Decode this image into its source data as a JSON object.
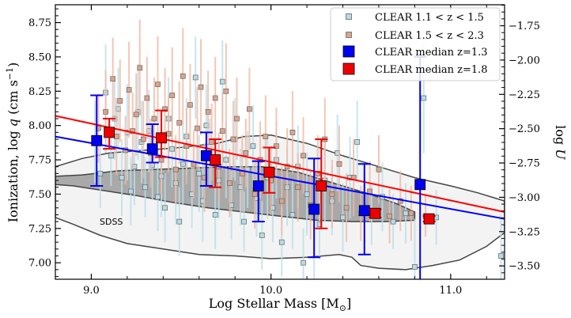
{
  "chart_data": {
    "type": "scatter",
    "title": "",
    "xlabel": "Log Stellar Mass [M",
    "xlabel_sub": "⊙",
    "xlabel_close": "]",
    "ylabel_prefix": "Ionization, log ",
    "ylabel_q": "q",
    "ylabel_units": " (cm s",
    "ylabel_exp": "−1",
    "ylabel_close": ")",
    "y2label_prefix": "log ",
    "y2label_var": "U",
    "xlim": [
      8.8,
      11.3
    ],
    "ylim": [
      6.88,
      8.88
    ],
    "y2_offset": 10.47712,
    "xticks": [
      {
        "v": 9.0,
        "label": "9.0"
      },
      {
        "v": 10.0,
        "label": "10.0"
      },
      {
        "v": 11.0,
        "label": "11.0"
      }
    ],
    "yticks": [
      {
        "v": 7.0,
        "label": "7.00"
      },
      {
        "v": 7.25,
        "label": "7.25"
      },
      {
        "v": 7.5,
        "label": "7.50"
      },
      {
        "v": 7.75,
        "label": "7.75"
      },
      {
        "v": 8.0,
        "label": "8.00"
      },
      {
        "v": 8.25,
        "label": "8.25"
      },
      {
        "v": 8.5,
        "label": "8.50"
      },
      {
        "v": 8.75,
        "label": "8.75"
      }
    ],
    "y2ticks": [
      {
        "v": -3.5,
        "label": "−3.50"
      },
      {
        "v": -3.25,
        "label": "−3.25"
      },
      {
        "v": -3.0,
        "label": "−3.00"
      },
      {
        "v": -2.75,
        "label": "−2.75"
      },
      {
        "v": -2.5,
        "label": "−2.50"
      },
      {
        "v": -2.25,
        "label": "−2.25"
      },
      {
        "v": -2.0,
        "label": "−2.00"
      },
      {
        "v": -1.75,
        "label": "−1.75"
      }
    ],
    "annotation": "SDSS",
    "legend": [
      {
        "label": "CLEAR 1.1 < z < 1.5",
        "kind": "small",
        "fill": "#b7dbe5",
        "edge": "#666666"
      },
      {
        "label": "CLEAR 1.5 < z < 2.3",
        "kind": "small",
        "fill": "#d8a58f",
        "edge": "#666666"
      },
      {
        "label": "CLEAR median z=1.3",
        "kind": "big",
        "fill": "#0000ee",
        "edge": "#000000"
      },
      {
        "label": "CLEAR median z=1.8",
        "kind": "big",
        "fill": "#ee0000",
        "edge": "#000000"
      }
    ],
    "colors": {
      "low_z_points": "#b7dbe5",
      "low_z_errors": "#b9dfea",
      "high_z_points": "#d8a58f",
      "high_z_errors": "#f0b8a3",
      "median_low": "#0000ee",
      "median_high": "#ee0000",
      "fit_low": "#0000ff",
      "fit_high": "#ff0000",
      "sdss_outer_fill": "#f3f3f3",
      "sdss_inner_fill": "#a9a9a9",
      "sdss_line": "#444444"
    },
    "fit_lines": [
      {
        "name": "fit z=1.3",
        "color": "#0000ff",
        "x": [
          8.8,
          11.3
        ],
        "y": [
          7.92,
          7.32
        ]
      },
      {
        "name": "fit z=1.8",
        "color": "#ff0000",
        "x": [
          8.8,
          11.3
        ],
        "y": [
          8.07,
          7.37
        ]
      }
    ],
    "sdss_contours": [
      {
        "name": "SDSS outer",
        "points": [
          [
            8.8,
            7.7
          ],
          [
            8.95,
            7.76
          ],
          [
            9.1,
            7.8
          ],
          [
            9.3,
            7.82
          ],
          [
            9.5,
            7.84
          ],
          [
            9.7,
            7.87
          ],
          [
            9.85,
            7.92
          ],
          [
            10.0,
            7.93
          ],
          [
            10.2,
            7.87
          ],
          [
            10.4,
            7.78
          ],
          [
            10.6,
            7.7
          ],
          [
            10.8,
            7.62
          ],
          [
            11.0,
            7.56
          ],
          [
            11.15,
            7.51
          ],
          [
            11.25,
            7.47
          ],
          [
            11.3,
            7.45
          ],
          [
            11.3,
            7.22
          ],
          [
            11.2,
            7.12
          ],
          [
            11.05,
            7.02
          ],
          [
            10.9,
            6.98
          ],
          [
            10.75,
            6.95
          ],
          [
            10.6,
            6.96
          ],
          [
            10.5,
            6.98
          ],
          [
            10.45,
            7.04
          ],
          [
            10.38,
            7.06
          ],
          [
            10.2,
            7.04
          ],
          [
            10.0,
            7.03
          ],
          [
            9.8,
            7.05
          ],
          [
            9.6,
            7.06
          ],
          [
            9.4,
            7.1
          ],
          [
            9.2,
            7.14
          ],
          [
            9.05,
            7.2
          ],
          [
            8.9,
            7.28
          ],
          [
            8.8,
            7.33
          ]
        ]
      },
      {
        "name": "SDSS inner",
        "points": [
          [
            8.8,
            7.63
          ],
          [
            8.95,
            7.64
          ],
          [
            9.15,
            7.67
          ],
          [
            9.35,
            7.68
          ],
          [
            9.55,
            7.69
          ],
          [
            9.75,
            7.7
          ],
          [
            9.95,
            7.7
          ],
          [
            10.15,
            7.66
          ],
          [
            10.35,
            7.58
          ],
          [
            10.55,
            7.5
          ],
          [
            10.7,
            7.43
          ],
          [
            10.8,
            7.37
          ],
          [
            10.8,
            7.31
          ],
          [
            10.65,
            7.3
          ],
          [
            10.45,
            7.3
          ],
          [
            10.25,
            7.31
          ],
          [
            10.05,
            7.34
          ],
          [
            9.85,
            7.37
          ],
          [
            9.65,
            7.4
          ],
          [
            9.45,
            7.44
          ],
          [
            9.25,
            7.49
          ],
          [
            9.05,
            7.53
          ],
          [
            8.9,
            7.56
          ],
          [
            8.8,
            7.57
          ]
        ]
      }
    ],
    "series": [
      {
        "name": "CLEAR median z=1.3",
        "color": "#0000ee",
        "x": [
          9.03,
          9.34,
          9.64,
          9.93,
          10.24,
          10.52,
          10.83
        ],
        "y": [
          7.89,
          7.83,
          7.78,
          7.56,
          7.39,
          7.38,
          7.57
        ],
        "yerr_low": [
          0.33,
          0.1,
          0.22,
          0.26,
          0.35,
          0.32,
          0.75
        ],
        "yerr_high": [
          0.33,
          0.18,
          0.17,
          0.18,
          0.37,
          0.34,
          0.93
        ]
      },
      {
        "name": "CLEAR median z=1.8",
        "color": "#ee0000",
        "x": [
          9.1,
          9.39,
          9.69,
          9.99,
          10.28,
          10.58,
          10.88
        ],
        "y": [
          7.95,
          7.91,
          7.75,
          7.66,
          7.56,
          7.36,
          7.32
        ],
        "yerr_low": [
          0.12,
          0.14,
          0.2,
          0.15,
          0.31,
          0.03,
          0.02
        ],
        "yerr_high": [
          0.1,
          0.2,
          0.15,
          0.18,
          0.34,
          0.03,
          0.02
        ]
      }
    ],
    "scatter_low_z": [
      [
        9.02,
        7.88,
        0.3
      ],
      [
        9.05,
        7.65,
        0.25
      ],
      [
        9.08,
        8.24,
        0.35
      ],
      [
        9.11,
        7.78,
        0.22
      ],
      [
        9.13,
        8.05,
        0.3
      ],
      [
        9.15,
        8.12,
        0.3
      ],
      [
        9.17,
        7.62,
        0.28
      ],
      [
        9.2,
        7.95,
        0.35
      ],
      [
        9.22,
        7.52,
        0.25
      ],
      [
        9.24,
        7.7,
        0.28
      ],
      [
        9.26,
        8.1,
        0.35
      ],
      [
        9.28,
        7.88,
        0.3
      ],
      [
        9.3,
        7.55,
        0.22
      ],
      [
        9.32,
        7.96,
        0.3
      ],
      [
        9.34,
        7.71,
        0.25
      ],
      [
        9.37,
        7.48,
        0.25
      ],
      [
        9.39,
        7.63,
        0.3
      ],
      [
        9.41,
        7.4,
        0.25
      ],
      [
        9.43,
        8.05,
        0.3
      ],
      [
        9.45,
        7.83,
        0.28
      ],
      [
        9.47,
        7.58,
        0.3
      ],
      [
        9.49,
        7.3,
        0.25
      ],
      [
        9.51,
        7.72,
        0.3
      ],
      [
        9.53,
        7.92,
        0.28
      ],
      [
        9.56,
        7.5,
        0.25
      ],
      [
        9.58,
        8.35,
        0.3
      ],
      [
        9.6,
        7.65,
        0.28
      ],
      [
        9.62,
        7.45,
        0.3
      ],
      [
        9.64,
        8.0,
        0.3
      ],
      [
        9.66,
        7.8,
        0.25
      ],
      [
        9.69,
        7.35,
        0.25
      ],
      [
        9.71,
        7.6,
        0.28
      ],
      [
        9.73,
        8.32,
        0.3
      ],
      [
        9.75,
        7.75,
        0.28
      ],
      [
        9.78,
        7.42,
        0.25
      ],
      [
        9.8,
        7.9,
        0.3
      ],
      [
        9.83,
        7.55,
        0.28
      ],
      [
        9.85,
        7.3,
        0.22
      ],
      [
        9.87,
        7.68,
        0.28
      ],
      [
        9.9,
        7.85,
        0.3
      ],
      [
        9.92,
        7.47,
        0.28
      ],
      [
        9.95,
        7.2,
        0.25
      ],
      [
        9.98,
        7.62,
        0.3
      ],
      [
        10.01,
        7.4,
        0.25
      ],
      [
        10.03,
        7.75,
        0.28
      ],
      [
        10.06,
        7.15,
        0.25
      ],
      [
        10.09,
        7.55,
        0.28
      ],
      [
        10.12,
        7.35,
        0.25
      ],
      [
        10.15,
        7.7,
        0.3
      ],
      [
        10.18,
        7.0,
        0.25
      ],
      [
        10.2,
        7.5,
        0.3
      ],
      [
        10.24,
        6.85,
        0.2
      ],
      [
        10.27,
        7.28,
        0.25
      ],
      [
        10.3,
        7.6,
        0.3
      ],
      [
        10.34,
        7.45,
        0.25
      ],
      [
        10.37,
        7.8,
        0.28
      ],
      [
        10.4,
        7.33,
        0.25
      ],
      [
        10.44,
        7.62,
        0.3
      ],
      [
        10.48,
        7.88,
        0.3
      ],
      [
        10.52,
        7.4,
        0.25
      ],
      [
        10.56,
        7.35,
        0.22
      ],
      [
        10.62,
        7.48,
        0.25
      ],
      [
        10.68,
        7.3,
        0.2
      ],
      [
        10.75,
        7.36,
        0.22
      ],
      [
        10.8,
        6.97,
        0.35
      ],
      [
        10.85,
        8.2,
        0.4
      ],
      [
        10.92,
        7.33,
        0.2
      ],
      [
        11.28,
        7.05,
        0.3
      ]
    ],
    "scatter_high_z": [
      [
        9.04,
        7.98,
        0.25
      ],
      [
        9.08,
        8.1,
        0.3
      ],
      [
        9.12,
        8.34,
        0.3
      ],
      [
        9.14,
        7.92,
        0.28
      ],
      [
        9.16,
        8.18,
        0.3
      ],
      [
        9.19,
        7.82,
        0.25
      ],
      [
        9.21,
        8.26,
        0.35
      ],
      [
        9.23,
        7.96,
        0.28
      ],
      [
        9.25,
        8.08,
        0.3
      ],
      [
        9.27,
        8.42,
        0.35
      ],
      [
        9.29,
        7.9,
        0.28
      ],
      [
        9.31,
        8.2,
        0.3
      ],
      [
        9.33,
        7.8,
        0.25
      ],
      [
        9.35,
        8.05,
        0.3
      ],
      [
        9.37,
        8.3,
        0.35
      ],
      [
        9.39,
        7.75,
        0.25
      ],
      [
        9.41,
        8.12,
        0.3
      ],
      [
        9.43,
        7.94,
        0.28
      ],
      [
        9.45,
        8.22,
        0.35
      ],
      [
        9.47,
        7.68,
        0.25
      ],
      [
        9.49,
        8.02,
        0.3
      ],
      [
        9.51,
        8.36,
        0.35
      ],
      [
        9.53,
        7.85,
        0.28
      ],
      [
        9.55,
        8.15,
        0.3
      ],
      [
        9.57,
        7.72,
        0.25
      ],
      [
        9.59,
        7.98,
        0.3
      ],
      [
        9.61,
        8.28,
        0.35
      ],
      [
        9.63,
        7.62,
        0.25
      ],
      [
        9.65,
        8.1,
        0.3
      ],
      [
        9.67,
        7.88,
        0.28
      ],
      [
        9.69,
        8.2,
        0.3
      ],
      [
        9.71,
        7.7,
        0.25
      ],
      [
        9.73,
        7.96,
        0.28
      ],
      [
        9.75,
        8.25,
        0.35
      ],
      [
        9.77,
        7.58,
        0.25
      ],
      [
        9.79,
        7.9,
        0.28
      ],
      [
        9.81,
        8.05,
        0.3
      ],
      [
        9.84,
        7.65,
        0.28
      ],
      [
        9.86,
        7.8,
        0.25
      ],
      [
        9.88,
        8.12,
        0.3
      ],
      [
        9.91,
        7.5,
        0.25
      ],
      [
        9.94,
        7.75,
        0.28
      ],
      [
        9.97,
        7.92,
        0.3
      ],
      [
        10.0,
        7.6,
        0.25
      ],
      [
        10.03,
        7.85,
        0.28
      ],
      [
        10.06,
        7.45,
        0.25
      ],
      [
        10.09,
        7.7,
        0.28
      ],
      [
        10.12,
        7.95,
        0.3
      ],
      [
        10.15,
        7.55,
        0.25
      ],
      [
        10.18,
        7.78,
        0.28
      ],
      [
        10.22,
        7.42,
        0.25
      ],
      [
        10.26,
        7.65,
        0.28
      ],
      [
        10.3,
        7.9,
        0.3
      ],
      [
        10.34,
        7.5,
        0.25
      ],
      [
        10.38,
        7.72,
        0.28
      ],
      [
        10.42,
        7.4,
        0.25
      ],
      [
        10.46,
        7.62,
        0.28
      ],
      [
        10.5,
        7.36,
        0.2
      ],
      [
        10.55,
        7.52,
        0.22
      ],
      [
        10.6,
        7.68,
        0.25
      ],
      [
        10.66,
        7.34,
        0.2
      ],
      [
        10.72,
        7.45,
        0.22
      ],
      [
        10.78,
        7.36,
        0.2
      ],
      [
        10.86,
        7.34,
        0.15
      ]
    ]
  }
}
